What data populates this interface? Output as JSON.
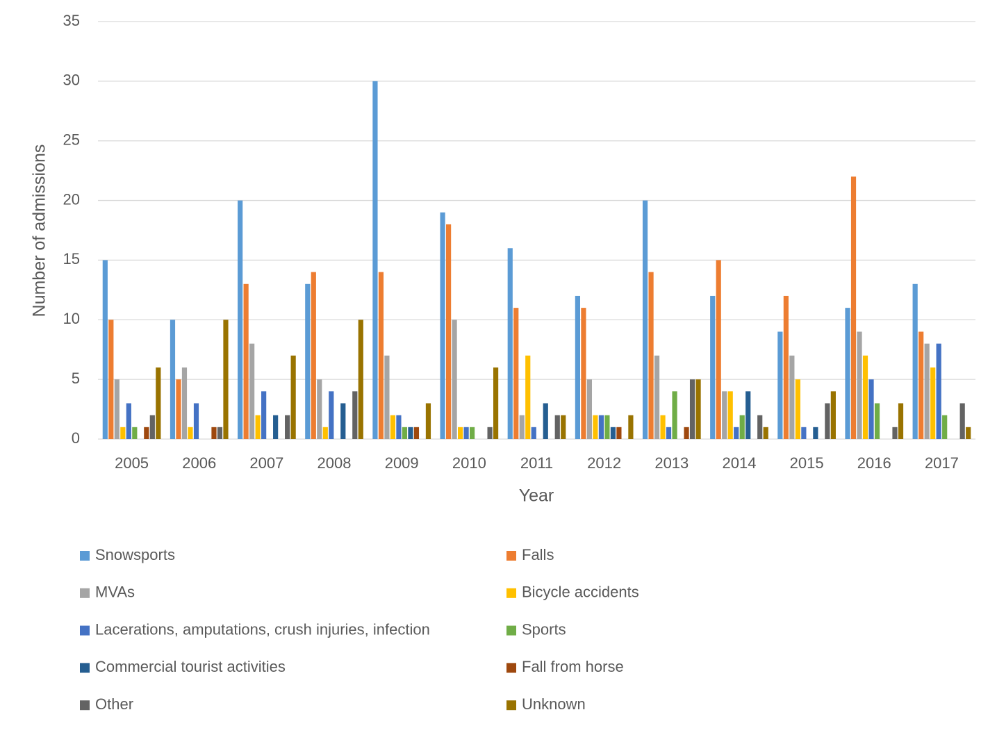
{
  "chart_data": {
    "type": "bar",
    "x_label": "Year",
    "y_label": "Number of admissions",
    "categories": [
      "2005",
      "2006",
      "2007",
      "2008",
      "2009",
      "2010",
      "2011",
      "2012",
      "2013",
      "2014",
      "2015",
      "2016",
      "2017"
    ],
    "series": [
      {
        "name": "Snowsports",
        "color": "#5b9bd5",
        "values": [
          15,
          10,
          20,
          13,
          30,
          19,
          16,
          12,
          20,
          12,
          9,
          11,
          13
        ]
      },
      {
        "name": "Falls",
        "color": "#ed7d31",
        "values": [
          10,
          5,
          13,
          14,
          14,
          18,
          11,
          11,
          14,
          15,
          12,
          22,
          9
        ]
      },
      {
        "name": "MVAs",
        "color": "#a5a5a5",
        "values": [
          5,
          6,
          8,
          5,
          7,
          10,
          2,
          5,
          7,
          4,
          7,
          9,
          8
        ]
      },
      {
        "name": "Bicycle accidents",
        "color": "#ffc000",
        "values": [
          1,
          1,
          2,
          1,
          2,
          1,
          7,
          2,
          2,
          4,
          5,
          7,
          6
        ]
      },
      {
        "name": "Lacerations, amputations, crush injuries, infection",
        "color": "#4472c4",
        "values": [
          3,
          3,
          4,
          4,
          2,
          1,
          1,
          2,
          1,
          1,
          1,
          5,
          8
        ]
      },
      {
        "name": "Sports",
        "color": "#70ad47",
        "values": [
          1,
          0,
          0,
          0,
          1,
          1,
          0,
          2,
          4,
          2,
          0,
          3,
          2
        ]
      },
      {
        "name": "Commercial tourist activities",
        "color": "#255e91",
        "values": [
          0,
          0,
          2,
          3,
          1,
          0,
          3,
          1,
          0,
          4,
          1,
          0,
          0
        ]
      },
      {
        "name": "Fall from horse",
        "color": "#9e480e",
        "values": [
          1,
          1,
          0,
          0,
          1,
          0,
          0,
          1,
          1,
          0,
          0,
          0,
          0
        ]
      },
      {
        "name": "Other",
        "color": "#636363",
        "values": [
          2,
          1,
          2,
          4,
          0,
          1,
          2,
          0,
          5,
          2,
          3,
          1,
          3
        ]
      },
      {
        "name": "Unknown",
        "color": "#997300",
        "values": [
          6,
          10,
          7,
          10,
          3,
          6,
          2,
          2,
          5,
          1,
          4,
          3,
          1
        ]
      }
    ],
    "ylim": [
      0,
      35
    ],
    "yticks": [
      0,
      5,
      10,
      15,
      20,
      25,
      30,
      35
    ],
    "grid": true,
    "legend": "bottom"
  }
}
